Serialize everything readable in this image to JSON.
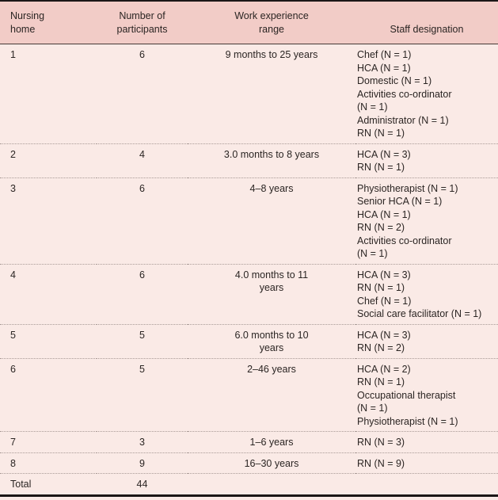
{
  "table": {
    "headers": [
      {
        "id": "nursing-home",
        "lines": [
          "Nursing",
          "home"
        ]
      },
      {
        "id": "participants",
        "lines": [
          "Number of",
          "participants"
        ]
      },
      {
        "id": "experience-range",
        "lines": [
          "Work experience",
          "range"
        ]
      },
      {
        "id": "staff-designation",
        "lines": [
          "Staff designation"
        ]
      }
    ],
    "rows": [
      {
        "home": "1",
        "participants": "6",
        "range_lines": [
          "9 months to 25 years"
        ],
        "staff_lines": [
          "Chef (N = 1)",
          "HCA (N = 1)",
          "Domestic (N = 1)",
          "Activities co-ordinator",
          "(N = 1)",
          "Administrator (N = 1)",
          "RN (N = 1)"
        ]
      },
      {
        "home": "2",
        "participants": "4",
        "range_lines": [
          "3.0 months to 8 years"
        ],
        "staff_lines": [
          "HCA (N = 3)",
          "RN (N = 1)"
        ]
      },
      {
        "home": "3",
        "participants": "6",
        "range_lines": [
          "4–8 years"
        ],
        "staff_lines": [
          "Physiotherapist (N = 1)",
          "Senior HCA (N = 1)",
          "HCA (N = 1)",
          "RN (N = 2)",
          "Activities co-ordinator",
          "(N = 1)"
        ]
      },
      {
        "home": "4",
        "participants": "6",
        "range_lines": [
          "4.0 months to 11",
          "years"
        ],
        "staff_lines": [
          "HCA (N = 3)",
          "RN (N = 1)",
          "Chef (N = 1)",
          "Social care facilitator (N = 1)"
        ]
      },
      {
        "home": "5",
        "participants": "5",
        "range_lines": [
          "6.0 months to 10",
          "years"
        ],
        "staff_lines": [
          "HCA (N = 3)",
          "RN (N = 2)"
        ]
      },
      {
        "home": "6",
        "participants": "5",
        "range_lines": [
          "2–46 years"
        ],
        "staff_lines": [
          "HCA (N = 2)",
          "RN (N = 1)",
          "Occupational therapist",
          "(N = 1)",
          "Physiotherapist (N = 1)"
        ]
      },
      {
        "home": "7",
        "participants": "3",
        "range_lines": [
          "1–6 years"
        ],
        "staff_lines": [
          "RN (N = 3)"
        ]
      },
      {
        "home": "8",
        "participants": "9",
        "range_lines": [
          "16–30 years"
        ],
        "staff_lines": [
          "RN (N = 9)"
        ]
      },
      {
        "home": "Total",
        "participants": "44",
        "range_lines": [],
        "staff_lines": [],
        "is_total": true
      }
    ]
  },
  "chart_data": {
    "type": "table",
    "columns": [
      "Nursing home",
      "Number of participants",
      "Work experience range",
      "Staff designation"
    ],
    "rows": [
      [
        "1",
        "6",
        "9 months to 25 years",
        "Chef (N = 1); HCA (N = 1); Domestic (N = 1); Activities co-ordinator (N = 1); Administrator (N = 1); RN (N = 1)"
      ],
      [
        "2",
        "4",
        "3.0 months to 8 years",
        "HCA (N = 3); RN (N = 1)"
      ],
      [
        "3",
        "6",
        "4–8 years",
        "Physiotherapist (N = 1); Senior HCA (N = 1); HCA (N = 1); RN (N = 2); Activities co-ordinator (N = 1)"
      ],
      [
        "4",
        "6",
        "4.0 months to 11 years",
        "HCA (N = 3); RN (N = 1); Chef (N = 1); Social care facilitator (N = 1)"
      ],
      [
        "5",
        "5",
        "6.0 months to 10 years",
        "HCA (N = 3); RN (N = 2)"
      ],
      [
        "6",
        "5",
        "2–46 years",
        "HCA (N = 2); RN (N = 1); Occupational therapist (N = 1); Physiotherapist (N = 1)"
      ],
      [
        "7",
        "3",
        "1–6 years",
        "RN (N = 3)"
      ],
      [
        "8",
        "9",
        "16–30 years",
        "RN (N = 9)"
      ],
      [
        "Total",
        "44",
        "",
        ""
      ]
    ]
  },
  "colors": {
    "header_bg": "#f2ccc7",
    "body_bg": "#faeae6",
    "frame": "#1b1616",
    "header_rule": "#453a37",
    "row_divider": "#a99b97",
    "text": "#2b2523"
  }
}
